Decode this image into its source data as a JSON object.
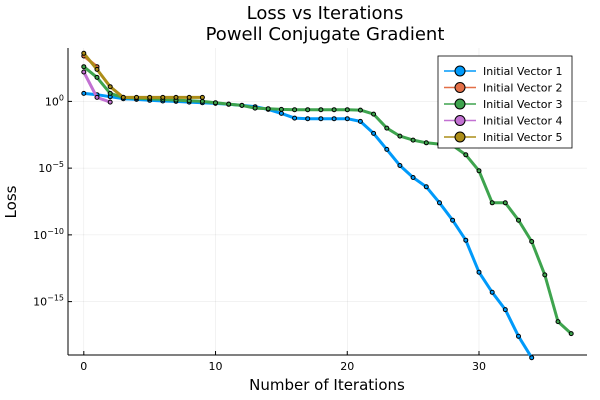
{
  "chart_data": {
    "type": "line",
    "title": "Loss vs Iterations",
    "subtitle": "Powell Conjugate Gradient",
    "xlabel": "Number of Iterations",
    "ylabel": "Loss",
    "yscale": "log",
    "xlim": [
      -1.2,
      38.2
    ],
    "ylim_exponent": [
      -19,
      4
    ],
    "grid": true,
    "legend_position": "top-right",
    "x_ticks": [
      0,
      10,
      20,
      30
    ],
    "y_ticks": [
      {
        "base": "10",
        "exp": "0",
        "value_exp": 0
      },
      {
        "base": "10",
        "exp": "−5",
        "value_exp": -5
      },
      {
        "base": "10",
        "exp": "−10",
        "value_exp": -10
      },
      {
        "base": "10",
        "exp": "−15",
        "value_exp": -15
      }
    ],
    "series": [
      {
        "name": "Initial Vector 1",
        "color": "#009AFA",
        "log10_values": [
          0.6,
          0.5,
          0.35,
          0.2,
          0.15,
          0.08,
          0.03,
          0.0,
          -0.05,
          -0.1,
          -0.15,
          -0.22,
          -0.3,
          -0.4,
          -0.6,
          -0.9,
          -1.25,
          -1.3,
          -1.3,
          -1.3,
          -1.3,
          -1.5,
          -2.4,
          -3.6,
          -4.8,
          -5.7,
          -6.4,
          -7.6,
          -8.9,
          -10.4,
          -12.8,
          -14.3,
          -15.6,
          -17.6,
          -19.2
        ]
      },
      {
        "name": "Initial Vector 2",
        "color": "#E36F47",
        "log10_values": [
          3.4,
          2.6
        ]
      },
      {
        "name": "Initial Vector 3",
        "color": "#3EA44E",
        "log10_values": [
          2.6,
          1.8,
          0.6,
          0.3,
          0.25,
          0.2,
          0.15,
          0.1,
          0.05,
          0.0,
          -0.1,
          -0.2,
          -0.3,
          -0.5,
          -0.55,
          -0.6,
          -0.62,
          -0.62,
          -0.62,
          -0.62,
          -0.62,
          -0.65,
          -0.95,
          -2.0,
          -2.6,
          -2.9,
          -3.1,
          -3.2,
          -3.3,
          -4.0,
          -5.2,
          -7.6,
          -7.6,
          -8.9,
          -10.5,
          -13.0,
          -16.5,
          -17.4
        ]
      },
      {
        "name": "Initial Vector 4",
        "color": "#C271D2",
        "log10_values": [
          2.2,
          0.3,
          -0.05
        ]
      },
      {
        "name": "Initial Vector 5",
        "color": "#AC8D18",
        "log10_values": [
          3.6,
          2.4,
          1.1,
          0.3,
          0.3,
          0.3,
          0.3,
          0.3,
          0.3,
          0.3
        ]
      }
    ]
  }
}
